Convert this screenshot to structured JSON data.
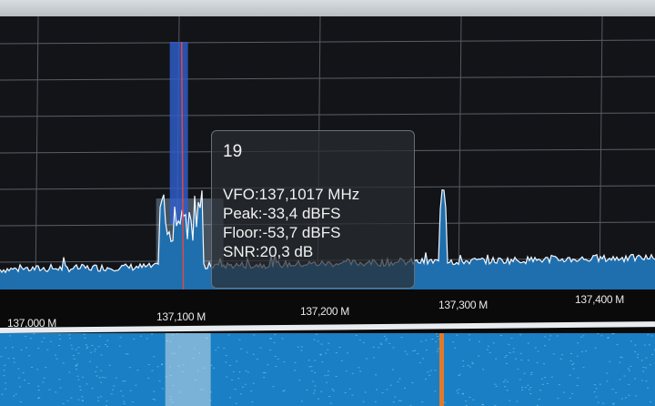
{
  "axis": {
    "ticks": [
      "137,000 M",
      "137,100 M",
      "137,200 M",
      "137,300 M",
      "137,400 M"
    ]
  },
  "tooltip": {
    "channel": "19",
    "vfo": "VFO:137,1017 MHz",
    "peak": "Peak:-33,4 dBFS",
    "floor": "Floor:-53,7 dBFS",
    "snr": "SNR:20,3 dB"
  },
  "chart_data": {
    "type": "line",
    "xlabel": "",
    "ylabel": "",
    "x_range_mhz": [
      136.99,
      137.44
    ],
    "vfo_mhz": 137.1017,
    "signals_mhz": [
      137.1017,
      137.3
    ],
    "grid": true
  },
  "colors": {
    "spectrum_fill": "#1f6fae",
    "trace": "#f4f8ff",
    "vfo_line": "#e04848",
    "vfo_band": "#2f5fd0",
    "waterfall": "#1a7fc4",
    "waterfall_signal": "#e07a2a"
  }
}
